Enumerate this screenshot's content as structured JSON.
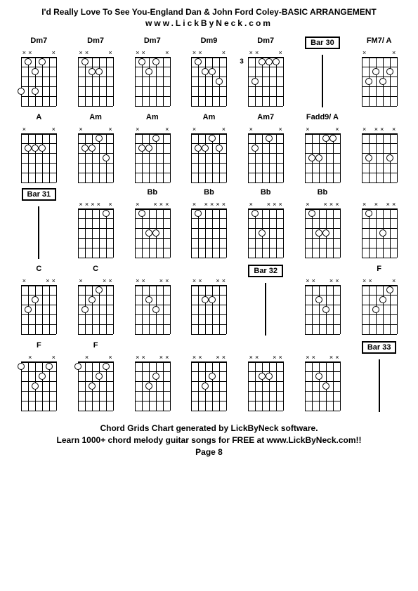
{
  "title": "I'd Really Love To See You-England Dan & John Ford Coley-BASIC ARRANGEMENT",
  "subtitle": "www.LickByNeck.com",
  "footer_line1": "Chord Grids Chart generated by LickByNeck software.",
  "footer_line2": "Learn 1000+ chord melody guitar songs for FREE at www.LickByNeck.com!!",
  "footer_page": "Page 8",
  "diagram": {
    "width": 50,
    "height": 70,
    "strings": 6,
    "frets": 5,
    "dot_size": 8,
    "border_color": "#000000",
    "bg_color": "#ffffff"
  },
  "rows": [
    [
      {
        "type": "chord",
        "label": "Dm7",
        "markers": [
          "x",
          "x",
          "",
          "",
          "",
          "x"
        ],
        "dots": [
          [
            1,
            1
          ],
          [
            1,
            3
          ],
          [
            2,
            2
          ],
          [
            4,
            0
          ],
          [
            4,
            2
          ]
        ]
      },
      {
        "type": "chord",
        "label": "Dm7",
        "markers": [
          "x",
          "x",
          "",
          "",
          "",
          "x"
        ],
        "dots": [
          [
            1,
            1
          ],
          [
            2,
            2
          ],
          [
            2,
            3
          ]
        ]
      },
      {
        "type": "chord",
        "label": "Dm7",
        "markers": [
          "x",
          "x",
          "",
          "",
          "",
          "x"
        ],
        "dots": [
          [
            1,
            1
          ],
          [
            1,
            3
          ],
          [
            2,
            2
          ]
        ]
      },
      {
        "type": "chord",
        "label": "Dm9",
        "markers": [
          "x",
          "x",
          "",
          "",
          "",
          "x"
        ],
        "dots": [
          [
            1,
            1
          ],
          [
            2,
            2
          ],
          [
            2,
            3
          ],
          [
            3,
            4
          ]
        ]
      },
      {
        "type": "chord",
        "label": "Dm7",
        "markers": [
          "x",
          "x",
          "",
          "",
          "",
          "x"
        ],
        "fret_num": "3",
        "dots": [
          [
            1,
            2
          ],
          [
            1,
            3
          ],
          [
            1,
            4
          ],
          [
            3,
            1
          ]
        ]
      },
      {
        "type": "bar",
        "label": "Bar 30"
      },
      {
        "type": "chord",
        "label": "FM7/ A",
        "markers": [
          "x",
          "",
          "",
          "",
          "",
          "x"
        ],
        "dots": [
          [
            2,
            2
          ],
          [
            2,
            4
          ],
          [
            3,
            1
          ],
          [
            3,
            3
          ]
        ]
      }
    ],
    [
      {
        "type": "chord",
        "label": "A",
        "markers": [
          "x",
          "",
          "",
          "",
          "",
          "x"
        ],
        "dots": [
          [
            2,
            1
          ],
          [
            2,
            2
          ],
          [
            2,
            3
          ]
        ]
      },
      {
        "type": "chord",
        "label": "Am",
        "markers": [
          "x",
          "",
          "",
          "",
          "",
          "x"
        ],
        "dots": [
          [
            1,
            3
          ],
          [
            2,
            1
          ],
          [
            2,
            2
          ],
          [
            3,
            4
          ]
        ]
      },
      {
        "type": "chord",
        "label": "Am",
        "markers": [
          "x",
          "",
          "",
          "",
          "",
          "x"
        ],
        "dots": [
          [
            1,
            3
          ],
          [
            2,
            1
          ],
          [
            2,
            2
          ]
        ]
      },
      {
        "type": "chord",
        "label": "Am",
        "markers": [
          "x",
          "",
          "",
          "",
          "",
          "x"
        ],
        "dots": [
          [
            1,
            3
          ],
          [
            2,
            1
          ],
          [
            2,
            2
          ],
          [
            2,
            4
          ]
        ]
      },
      {
        "type": "chord",
        "label": "Am7",
        "markers": [
          "x",
          "",
          "",
          "",
          "",
          "x"
        ],
        "dots": [
          [
            1,
            3
          ],
          [
            2,
            1
          ]
        ]
      },
      {
        "type": "chord",
        "label": "Fadd9/ A",
        "markers": [
          "x",
          "",
          "",
          "",
          "",
          "x"
        ],
        "dots": [
          [
            1,
            3
          ],
          [
            1,
            4
          ],
          [
            3,
            1
          ],
          [
            3,
            2
          ]
        ]
      },
      {
        "type": "chord",
        "label": "",
        "markers": [
          "x",
          "",
          "x",
          "x",
          "",
          "x"
        ],
        "dots": [
          [
            3,
            1
          ],
          [
            3,
            4
          ]
        ]
      }
    ],
    [
      {
        "type": "bar",
        "label": "Bar 31"
      },
      {
        "type": "chord",
        "label": "",
        "markers": [
          "x",
          "x",
          "x",
          "x",
          "",
          "x"
        ],
        "dots": [
          [
            1,
            4
          ]
        ]
      },
      {
        "type": "chord",
        "label": "Bb",
        "markers": [
          "x",
          "",
          "",
          "x",
          "x",
          "x"
        ],
        "dots": [
          [
            1,
            1
          ],
          [
            3,
            2
          ],
          [
            3,
            3
          ]
        ]
      },
      {
        "type": "chord",
        "label": "Bb",
        "markers": [
          "x",
          "",
          "x",
          "x",
          "x",
          "x"
        ],
        "dots": [
          [
            1,
            1
          ]
        ]
      },
      {
        "type": "chord",
        "label": "Bb",
        "markers": [
          "x",
          "",
          "",
          "x",
          "x",
          "x"
        ],
        "dots": [
          [
            1,
            1
          ],
          [
            3,
            2
          ]
        ]
      },
      {
        "type": "chord",
        "label": "Bb",
        "markers": [
          "x",
          "",
          "",
          "x",
          "x",
          "x"
        ],
        "dots": [
          [
            1,
            1
          ],
          [
            3,
            2
          ],
          [
            3,
            3
          ]
        ]
      },
      {
        "type": "chord",
        "label": "",
        "markers": [
          "x",
          "",
          "x",
          "",
          "x",
          "x"
        ],
        "dots": [
          [
            1,
            1
          ],
          [
            3,
            3
          ]
        ]
      }
    ],
    [
      {
        "type": "chord",
        "label": "C",
        "markers": [
          "x",
          "",
          "",
          "",
          "x",
          "x"
        ],
        "dots": [
          [
            2,
            2
          ],
          [
            3,
            1
          ]
        ]
      },
      {
        "type": "chord",
        "label": "C",
        "markers": [
          "x",
          "",
          "",
          "",
          "x",
          "x"
        ],
        "dots": [
          [
            1,
            3
          ],
          [
            2,
            2
          ],
          [
            3,
            1
          ]
        ]
      },
      {
        "type": "chord",
        "label": "",
        "markers": [
          "x",
          "x",
          "",
          "",
          "x",
          "x"
        ],
        "dots": [
          [
            2,
            2
          ],
          [
            3,
            3
          ]
        ]
      },
      {
        "type": "chord",
        "label": "",
        "markers": [
          "x",
          "x",
          "",
          "",
          "x",
          "x"
        ],
        "dots": [
          [
            2,
            2
          ],
          [
            2,
            3
          ]
        ]
      },
      {
        "type": "bar",
        "label": "Bar 32"
      },
      {
        "type": "chord",
        "label": "",
        "markers": [
          "x",
          "x",
          "",
          "",
          "x",
          "x"
        ],
        "dots": [
          [
            2,
            2
          ],
          [
            3,
            3
          ]
        ]
      },
      {
        "type": "chord",
        "label": "F",
        "markers": [
          "x",
          "x",
          "",
          "",
          "",
          "x"
        ],
        "dots": [
          [
            1,
            4
          ],
          [
            2,
            3
          ],
          [
            3,
            2
          ]
        ]
      }
    ],
    [
      {
        "type": "chord",
        "label": "F",
        "markers": [
          "",
          "x",
          "",
          "",
          "",
          "x"
        ],
        "dots": [
          [
            1,
            0
          ],
          [
            1,
            4
          ],
          [
            2,
            3
          ],
          [
            3,
            2
          ]
        ]
      },
      {
        "type": "chord",
        "label": "F",
        "markers": [
          "",
          "x",
          "",
          "",
          "",
          "x"
        ],
        "dots": [
          [
            1,
            0
          ],
          [
            1,
            4
          ],
          [
            2,
            3
          ],
          [
            3,
            2
          ]
        ]
      },
      {
        "type": "chord",
        "label": "",
        "markers": [
          "x",
          "x",
          "",
          "",
          "x",
          "x"
        ],
        "dots": [
          [
            2,
            3
          ],
          [
            3,
            2
          ]
        ]
      },
      {
        "type": "chord",
        "label": "",
        "markers": [
          "x",
          "x",
          "",
          "",
          "x",
          "x"
        ],
        "dots": [
          [
            2,
            3
          ],
          [
            3,
            2
          ]
        ]
      },
      {
        "type": "chord",
        "label": "",
        "markers": [
          "x",
          "x",
          "",
          "",
          "x",
          "x"
        ],
        "dots": [
          [
            2,
            2
          ],
          [
            2,
            3
          ]
        ]
      },
      {
        "type": "chord",
        "label": "",
        "markers": [
          "x",
          "x",
          "",
          "",
          "x",
          "x"
        ],
        "dots": [
          [
            2,
            2
          ],
          [
            3,
            3
          ]
        ]
      },
      {
        "type": "bar",
        "label": "Bar 33"
      }
    ]
  ]
}
